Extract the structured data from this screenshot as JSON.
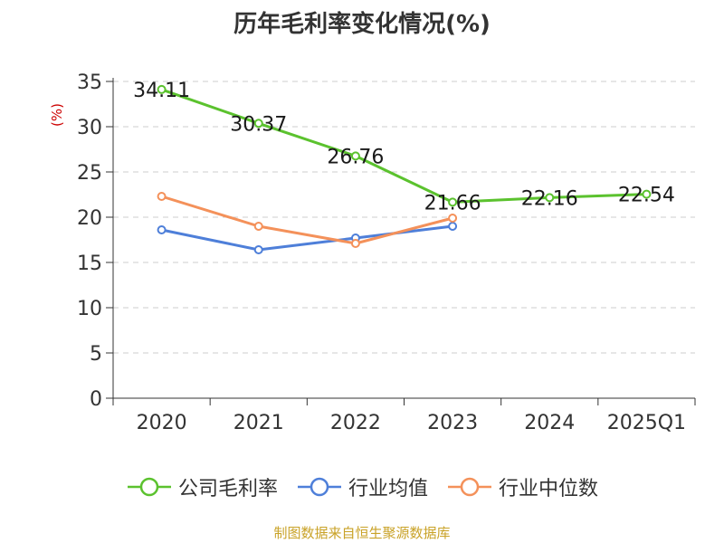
{
  "chart_data": {
    "type": "line",
    "title": "历年毛利率变化情况(%)",
    "ylabel": "(%)",
    "categories": [
      "2020",
      "2021",
      "2022",
      "2023",
      "2024",
      "2025Q1"
    ],
    "ylim": [
      0,
      35
    ],
    "yticks": [
      0,
      5,
      10,
      15,
      20,
      25,
      30,
      35
    ],
    "grid": true,
    "legend_position": "bottom",
    "series": [
      {
        "name": "公司毛利率",
        "color": "#5bc22e",
        "values": [
          34.11,
          30.37,
          26.76,
          21.66,
          22.16,
          22.54
        ],
        "labels": [
          "34.11",
          "30.37",
          "26.76",
          "21.66",
          "22.16",
          "22.54"
        ]
      },
      {
        "name": "行业均值",
        "color": "#4e7fd9",
        "values": [
          18.6,
          16.4,
          17.7,
          19.0,
          null,
          null
        ]
      },
      {
        "name": "行业中位数",
        "color": "#f4915a",
        "values": [
          22.3,
          19.0,
          17.1,
          19.9,
          null,
          null
        ]
      }
    ]
  },
  "source_text": "制图数据来自恒生聚源数据库"
}
